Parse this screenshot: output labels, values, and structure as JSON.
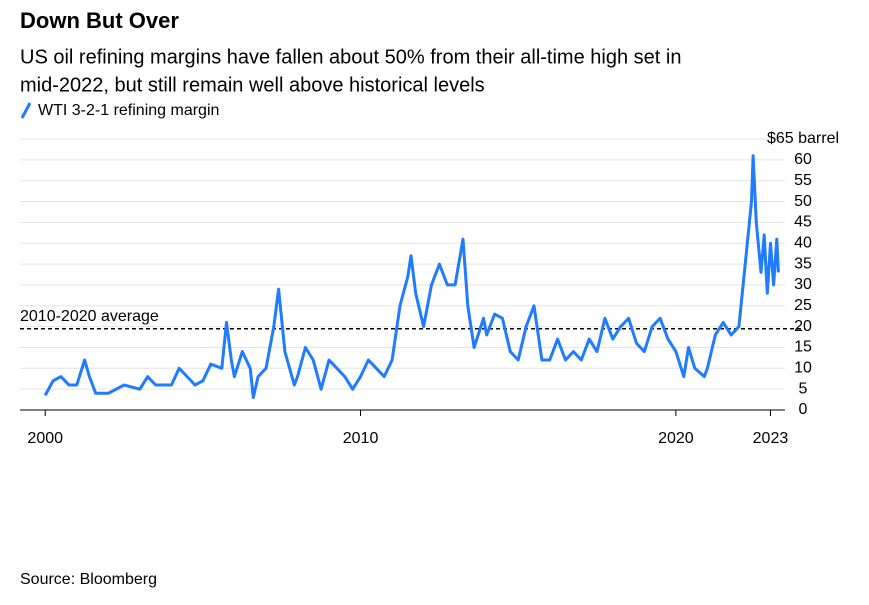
{
  "chart_data": {
    "type": "line",
    "title": "Down But Over",
    "subtitle": [
      "US oil refining margins have fallen about 50% from their all-time high set in",
      "mid-2022, but still remain well above historical levels"
    ],
    "source": "Source: Bloomberg",
    "xlim": [
      1999.2,
      2024
    ],
    "xticks": [
      2000,
      2010,
      2020,
      2023
    ],
    "ylim": [
      0,
      65
    ],
    "yticks": [
      0,
      5,
      10,
      15,
      20,
      25,
      30,
      35,
      40,
      45,
      50,
      55,
      60,
      {
        "value": 65,
        "label": "$65 barrel"
      }
    ],
    "grid": true,
    "reference_line": {
      "value": 19.5,
      "label": "2010-2020 average"
    },
    "series": [
      {
        "name": "WTI 3-2-1 refining margin",
        "color": "#1f7bff",
        "x": [
          2000.0,
          2000.25,
          2000.5,
          2000.75,
          2001.0,
          2001.25,
          2001.4,
          2001.6,
          2002.0,
          2002.5,
          2003.0,
          2003.25,
          2003.5,
          2004.0,
          2004.25,
          2004.5,
          2004.75,
          2005.0,
          2005.25,
          2005.6,
          2005.75,
          2005.9,
          2006.0,
          2006.25,
          2006.5,
          2006.6,
          2006.75,
          2007.0,
          2007.25,
          2007.4,
          2007.6,
          2007.9,
          2008.0,
          2008.25,
          2008.5,
          2008.75,
          2009.0,
          2009.25,
          2009.5,
          2009.75,
          2010.0,
          2010.25,
          2010.5,
          2010.75,
          2011.0,
          2011.25,
          2011.5,
          2011.6,
          2011.75,
          2012.0,
          2012.25,
          2012.5,
          2012.75,
          2013.0,
          2013.25,
          2013.4,
          2013.6,
          2013.9,
          2014.0,
          2014.25,
          2014.5,
          2014.75,
          2015.0,
          2015.25,
          2015.5,
          2015.75,
          2016.0,
          2016.25,
          2016.5,
          2016.75,
          2017.0,
          2017.25,
          2017.5,
          2017.75,
          2018.0,
          2018.25,
          2018.5,
          2018.75,
          2019.0,
          2019.25,
          2019.5,
          2019.75,
          2020.0,
          2020.25,
          2020.4,
          2020.6,
          2020.9,
          2021.0,
          2021.25,
          2021.5,
          2021.75,
          2022.0,
          2022.2,
          2022.4,
          2022.45,
          2022.55,
          2022.7,
          2022.8,
          2022.9,
          2023.0,
          2023.1,
          2023.2,
          2023.25
        ],
        "values": [
          3.5,
          7,
          8,
          6,
          6,
          12,
          8,
          4,
          4,
          6,
          5,
          8,
          6,
          6,
          10,
          8,
          6,
          7,
          11,
          10,
          21,
          12,
          8,
          14,
          10,
          3,
          8,
          10,
          20,
          29,
          14,
          6,
          8,
          15,
          12,
          5,
          12,
          10,
          8,
          5,
          8,
          12,
          10,
          8,
          12,
          25,
          32,
          37,
          28,
          20,
          30,
          35,
          30,
          30,
          41,
          25,
          15,
          22,
          18,
          23,
          22,
          14,
          12,
          20,
          25,
          12,
          12,
          17,
          12,
          14,
          12,
          17,
          14,
          22,
          17,
          20,
          22,
          16,
          14,
          20,
          22,
          17,
          14,
          8,
          15,
          10,
          8,
          10,
          18,
          21,
          18,
          20,
          35,
          50,
          61,
          45,
          33,
          42,
          28,
          40,
          30,
          41,
          33
        ]
      }
    ]
  }
}
